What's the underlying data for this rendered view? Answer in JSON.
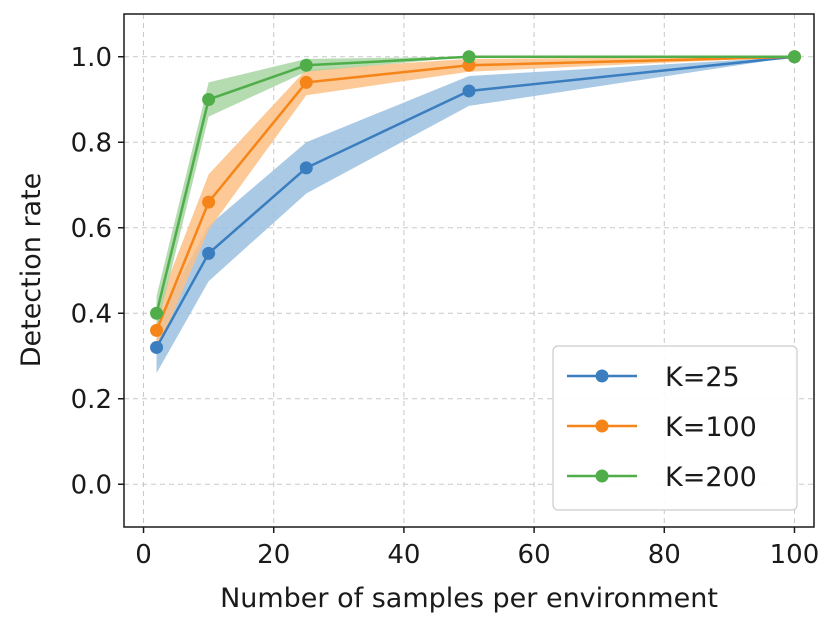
{
  "chart_data": {
    "type": "line",
    "title": "",
    "xlabel": "Number of samples per environment",
    "ylabel": "Detection rate",
    "xlim": [
      -3,
      103
    ],
    "ylim": [
      -0.1,
      1.1
    ],
    "xticks": [
      0,
      20,
      40,
      60,
      80,
      100
    ],
    "yticks": [
      0.0,
      0.2,
      0.4,
      0.6,
      0.8,
      1.0
    ],
    "xtick_labels": [
      "0",
      "20",
      "40",
      "60",
      "80",
      "100"
    ],
    "ytick_labels": [
      "0.0",
      "0.2",
      "0.4",
      "0.6",
      "0.8",
      "1.0"
    ],
    "grid": true,
    "legend_position": "bottom-right",
    "x": [
      2,
      10,
      25,
      50,
      100
    ],
    "series": [
      {
        "name": "K=25",
        "color": "#3a7ebf",
        "band_color": "#9bbfdf",
        "values": [
          0.32,
          0.54,
          0.74,
          0.92,
          1.0
        ],
        "lower": [
          0.26,
          0.475,
          0.68,
          0.885,
          1.0
        ],
        "upper": [
          0.38,
          0.605,
          0.8,
          0.955,
          1.0
        ]
      },
      {
        "name": "K=100",
        "color": "#f58518",
        "band_color": "#fbbf85",
        "values": [
          0.36,
          0.66,
          0.94,
          0.98,
          1.0
        ],
        "lower": [
          0.31,
          0.595,
          0.91,
          0.965,
          1.0
        ],
        "upper": [
          0.41,
          0.725,
          0.97,
          0.995,
          1.0
        ]
      },
      {
        "name": "K=200",
        "color": "#4fae4a",
        "band_color": "#a8d5a3",
        "values": [
          0.4,
          0.9,
          0.98,
          1.0,
          1.0
        ],
        "lower": [
          0.36,
          0.86,
          0.965,
          1.0,
          1.0
        ],
        "upper": [
          0.44,
          0.94,
          0.995,
          1.0,
          1.0
        ]
      }
    ]
  }
}
